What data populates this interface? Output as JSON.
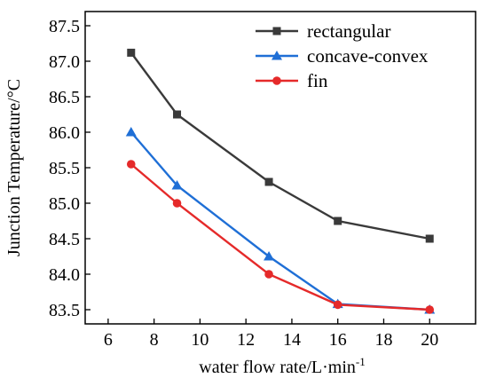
{
  "chart_data": {
    "type": "line",
    "xlabel": "water flow rate/L·min",
    "xlabel_superscript": "-1",
    "ylabel": "Junction Temperature/°C",
    "xlim": [
      5,
      22
    ],
    "ylim": [
      83.3,
      87.7
    ],
    "xticks": [
      6,
      8,
      10,
      12,
      14,
      16,
      18,
      20
    ],
    "yticks": [
      83.5,
      84.0,
      84.5,
      85.0,
      85.5,
      86.0,
      86.5,
      87.0,
      87.5
    ],
    "ytick_labels": [
      "83.5",
      "84.0",
      "84.5",
      "85.0",
      "85.5",
      "86.0",
      "86.5",
      "87.0",
      "87.5"
    ],
    "x": [
      7,
      9,
      13,
      16,
      20
    ],
    "legend_position": "top-right",
    "grid": false,
    "series": [
      {
        "name": "rectangular",
        "marker": "square",
        "color": "#3a3a3a",
        "values": [
          87.12,
          86.25,
          85.3,
          84.75,
          84.5
        ]
      },
      {
        "name": "concave-convex",
        "marker": "triangle",
        "color": "#1f6fd6",
        "values": [
          86.0,
          85.25,
          84.25,
          83.58,
          83.5
        ]
      },
      {
        "name": "fin",
        "marker": "circle",
        "color": "#e52a2a",
        "values": [
          85.55,
          85.0,
          84.0,
          83.57,
          83.5
        ]
      }
    ]
  }
}
